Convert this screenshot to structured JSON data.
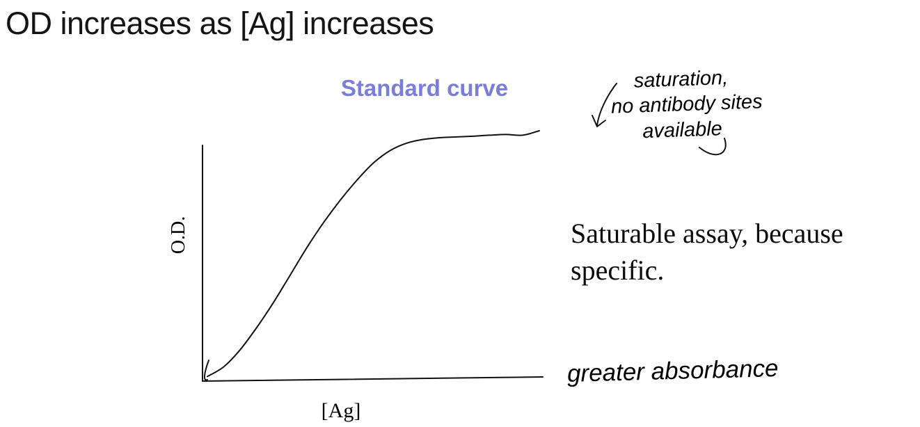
{
  "title": "OD increases as [Ag] increases",
  "chart": {
    "title": "Standard curve",
    "title_color": "#7b7ed9",
    "ylabel": "O.D.",
    "xlabel": "[Ag]"
  },
  "annotations": {
    "saturation_line1": "saturation,",
    "saturation_line2": "no antibody sites",
    "saturation_line3": "available",
    "body_line1": "Saturable assay, because",
    "body_line2": "specific.",
    "absorbance_note": "greater absorbance"
  },
  "chart_data": {
    "type": "line",
    "title": "Standard curve",
    "xlabel": "[Ag]",
    "ylabel": "O.D.",
    "x": [
      0,
      0.5,
      1,
      1.5,
      2,
      2.5,
      3,
      3.5,
      4,
      4.5,
      5,
      5.5,
      6,
      6.5,
      7,
      7.5,
      8,
      8.5,
      9,
      9.5,
      10
    ],
    "y": [
      0.01,
      0.05,
      0.12,
      0.21,
      0.31,
      0.42,
      0.53,
      0.63,
      0.72,
      0.8,
      0.87,
      0.92,
      0.95,
      0.965,
      0.972,
      0.975,
      0.978,
      0.982,
      0.985,
      0.982,
      1.0
    ],
    "xlim": [
      0,
      10
    ],
    "ylim": [
      0,
      1
    ],
    "grid": false,
    "legend": false,
    "style": "hand-drawn sigmoidal standard curve, axes without tick labels"
  }
}
